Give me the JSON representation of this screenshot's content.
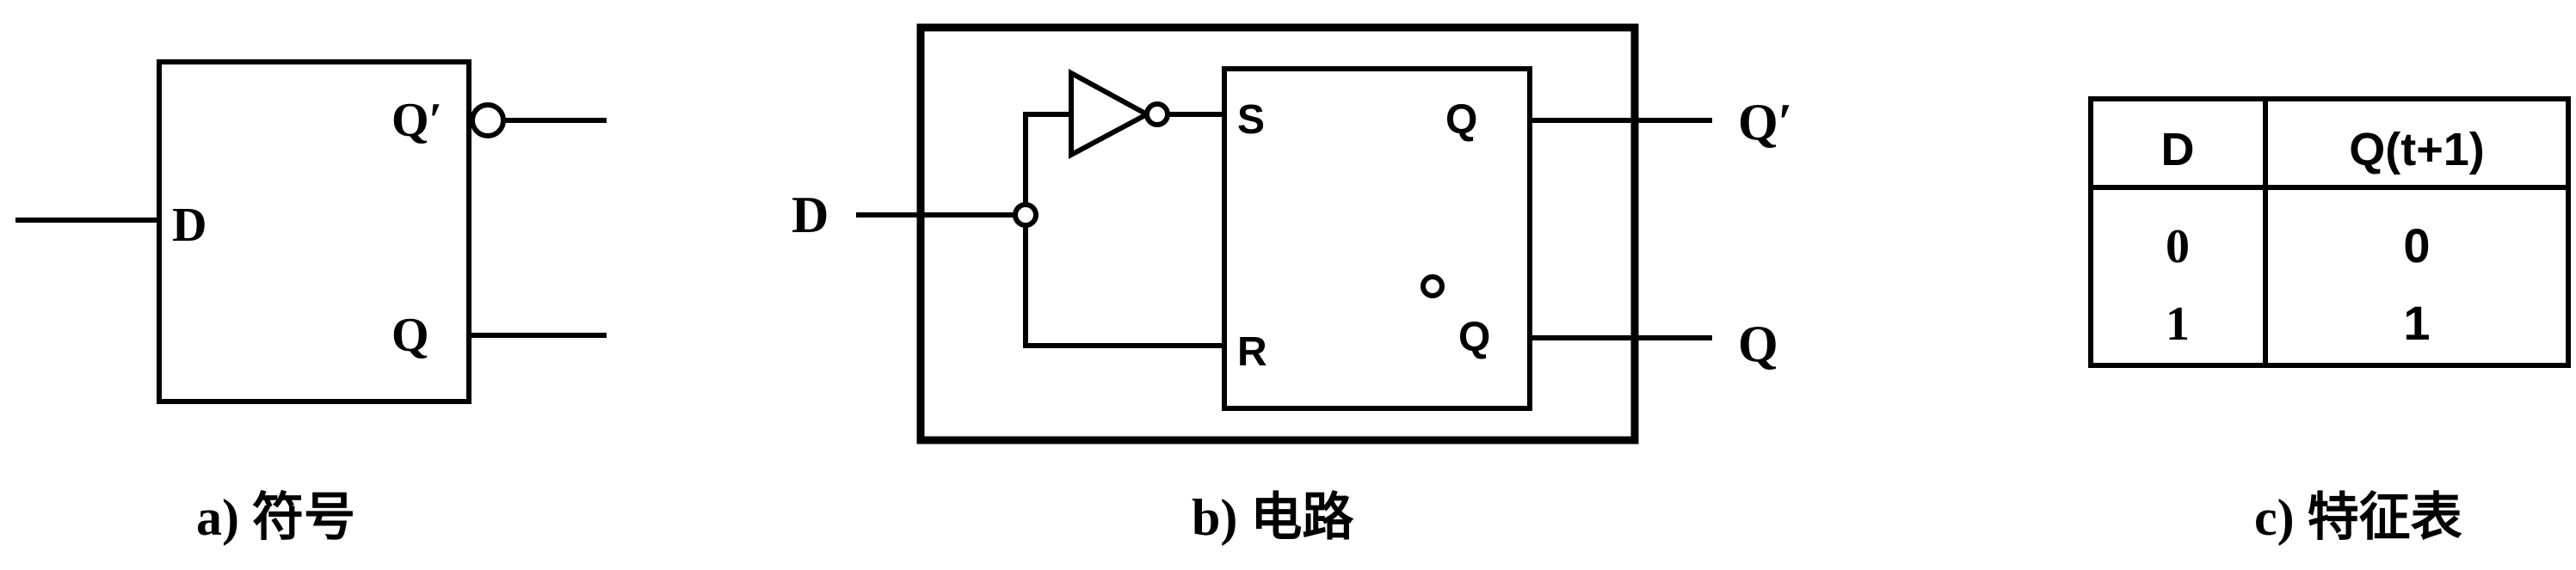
{
  "panel_a": {
    "input_label": "D",
    "output_top_label": "Q′",
    "output_bottom_label": "Q",
    "caption": "a) 符号"
  },
  "panel_b": {
    "input_label": "D",
    "inner_s_label": "S",
    "inner_r_label": "R",
    "inner_q_top_label": "Q",
    "inner_q_bottom_label": "Q",
    "output_top_label": "Q′",
    "output_bottom_label": "Q",
    "caption": "b) 电路"
  },
  "panel_c": {
    "header": [
      "D",
      "Q(t+1)"
    ],
    "rows": [
      [
        "0",
        "0"
      ],
      [
        "1",
        "1"
      ]
    ],
    "caption": "c) 特征表"
  }
}
